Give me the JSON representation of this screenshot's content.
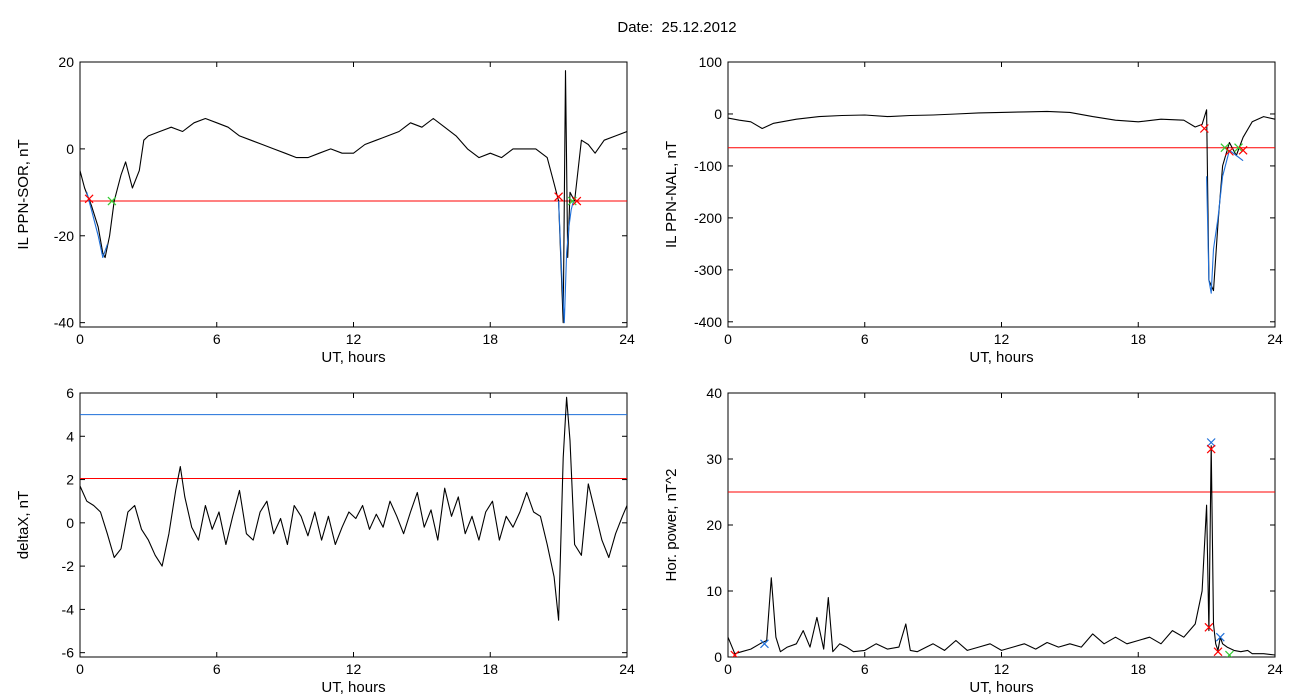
{
  "figure": {
    "title": "Date:  25.12.2012"
  },
  "chart_data": [
    {
      "type": "line",
      "panel": "top-left",
      "xlabel": "UT, hours",
      "ylabel": "IL PPN-SOR, nT",
      "xlim": [
        0,
        24
      ],
      "ylim": [
        -41,
        20
      ],
      "xticks": [
        0,
        6,
        12,
        18,
        24
      ],
      "yticks": [
        -40,
        -20,
        0,
        20
      ],
      "series": [
        {
          "role": "index",
          "color": "#000000",
          "x": [
            0,
            0.2,
            0.5,
            0.8,
            1.0,
            1.1,
            1.3,
            1.5,
            1.8,
            2.0,
            2.3,
            2.6,
            2.8,
            3.0,
            3.5,
            4.0,
            4.5,
            5.0,
            5.5,
            6.0,
            6.5,
            7.0,
            7.5,
            8.0,
            8.5,
            9.0,
            9.5,
            10.0,
            10.5,
            11.0,
            11.5,
            12.0,
            12.5,
            13.0,
            13.5,
            14.0,
            14.5,
            15.0,
            15.5,
            16.0,
            16.5,
            17.0,
            17.5,
            18.0,
            18.5,
            19.0,
            19.5,
            20.0,
            20.5,
            20.8,
            21.0,
            21.2,
            21.3,
            21.4,
            21.5,
            21.7,
            22.0,
            22.3,
            22.6,
            23.0,
            23.5,
            24.0
          ],
          "y": [
            -5,
            -9,
            -13,
            -18,
            -24,
            -25,
            -20,
            -12,
            -6,
            -3,
            -9,
            -5,
            2,
            3,
            4,
            5,
            4,
            6,
            7,
            6,
            5,
            3,
            2,
            1,
            0,
            -1,
            -2,
            -2,
            -1,
            0,
            -1,
            -1,
            1,
            2,
            3,
            4,
            6,
            5,
            7,
            5,
            3,
            0,
            -2,
            -1,
            -2,
            0,
            0,
            0,
            -2,
            -8,
            -12,
            -40,
            18,
            -25,
            -10,
            -12,
            2,
            1,
            -1,
            2,
            3,
            4
          ]
        },
        {
          "role": "disturbed",
          "color": "#1e6fd9",
          "x": [
            0.3,
            0.5,
            0.8,
            1.0,
            1.2
          ],
          "y": [
            -10,
            -14,
            -20,
            -25,
            -22
          ]
        },
        {
          "role": "disturbed",
          "color": "#1e6fd9",
          "x": [
            21.0,
            21.15,
            21.25,
            21.35,
            21.45,
            21.55,
            21.65
          ],
          "y": [
            -12,
            -30,
            -40,
            -24,
            -18,
            -14,
            -12
          ]
        }
      ],
      "thresholds": [
        {
          "y": -12,
          "color": "#ff0000"
        }
      ],
      "markers": [
        {
          "x": 0.4,
          "y": -11.5,
          "color": "#ff0000"
        },
        {
          "x": 1.4,
          "y": -12,
          "color": "#33cc33"
        },
        {
          "x": 21.0,
          "y": -11,
          "color": "#ff0000"
        },
        {
          "x": 21.6,
          "y": -12,
          "color": "#33cc33"
        },
        {
          "x": 21.8,
          "y": -12,
          "color": "#ff0000"
        }
      ]
    },
    {
      "type": "line",
      "panel": "top-right",
      "xlabel": "UT, hours",
      "ylabel": "IL PPN-NAL, nT",
      "xlim": [
        0,
        24
      ],
      "ylim": [
        -410,
        100
      ],
      "xticks": [
        0,
        6,
        12,
        18,
        24
      ],
      "yticks": [
        -400,
        -300,
        -200,
        -100,
        0,
        100
      ],
      "series": [
        {
          "role": "index",
          "color": "#000000",
          "x": [
            0,
            0.5,
            1.0,
            1.5,
            2.0,
            3.0,
            4.0,
            5.0,
            6.0,
            7.0,
            8.0,
            9.0,
            10.0,
            11.0,
            12.0,
            13.0,
            14.0,
            15.0,
            16.0,
            17.0,
            18.0,
            19.0,
            20.0,
            20.5,
            20.8,
            21.0,
            21.1,
            21.3,
            21.5,
            21.7,
            22.0,
            22.3,
            22.6,
            23.0,
            23.5,
            24.0
          ],
          "y": [
            -8,
            -12,
            -15,
            -28,
            -18,
            -10,
            -5,
            -3,
            -2,
            -5,
            -3,
            -2,
            0,
            2,
            3,
            4,
            5,
            3,
            -5,
            -12,
            -15,
            -10,
            -12,
            -25,
            -20,
            8,
            -320,
            -340,
            -210,
            -100,
            -55,
            -80,
            -45,
            -15,
            -5,
            -10
          ]
        },
        {
          "role": "disturbed",
          "color": "#1e6fd9",
          "x": [
            21.0,
            21.1,
            21.2,
            21.3,
            21.5,
            21.7,
            22.0,
            22.3,
            22.6
          ],
          "y": [
            -120,
            -320,
            -345,
            -260,
            -200,
            -120,
            -70,
            -80,
            -90
          ]
        }
      ],
      "thresholds": [
        {
          "y": -65,
          "color": "#ff0000"
        }
      ],
      "markers": [
        {
          "x": 20.9,
          "y": -28,
          "color": "#ff0000"
        },
        {
          "x": 21.8,
          "y": -65,
          "color": "#33cc33"
        },
        {
          "x": 22.0,
          "y": -72,
          "color": "#ff0000"
        },
        {
          "x": 22.4,
          "y": -65,
          "color": "#33cc33"
        },
        {
          "x": 22.6,
          "y": -70,
          "color": "#ff0000"
        }
      ]
    },
    {
      "type": "line",
      "panel": "bottom-left",
      "xlabel": "UT, hours",
      "ylabel": "deltaX, nT",
      "xlim": [
        0,
        24
      ],
      "ylim": [
        -6.2,
        6
      ],
      "xticks": [
        0,
        6,
        12,
        18,
        24
      ],
      "yticks": [
        -6,
        -4,
        -2,
        0,
        2,
        4,
        6
      ],
      "series": [
        {
          "role": "index",
          "color": "#000000",
          "x": [
            0,
            0.3,
            0.6,
            0.9,
            1.2,
            1.5,
            1.8,
            2.1,
            2.4,
            2.7,
            3.0,
            3.3,
            3.6,
            3.9,
            4.2,
            4.4,
            4.6,
            4.9,
            5.2,
            5.5,
            5.8,
            6.1,
            6.4,
            6.7,
            7.0,
            7.3,
            7.6,
            7.9,
            8.2,
            8.5,
            8.8,
            9.1,
            9.4,
            9.7,
            10.0,
            10.3,
            10.6,
            10.9,
            11.2,
            11.5,
            11.8,
            12.1,
            12.4,
            12.7,
            13.0,
            13.3,
            13.6,
            13.9,
            14.2,
            14.5,
            14.8,
            15.1,
            15.4,
            15.7,
            16.0,
            16.3,
            16.6,
            16.9,
            17.2,
            17.5,
            17.8,
            18.1,
            18.4,
            18.7,
            19.0,
            19.3,
            19.6,
            19.9,
            20.2,
            20.5,
            20.8,
            21.0,
            21.2,
            21.35,
            21.5,
            21.7,
            22.0,
            22.3,
            22.6,
            22.9,
            23.2,
            23.5,
            23.8,
            24.0
          ],
          "y": [
            1.7,
            1.0,
            0.8,
            0.5,
            -0.5,
            -1.6,
            -1.2,
            0.5,
            0.8,
            -0.3,
            -0.8,
            -1.5,
            -2.0,
            -0.5,
            1.5,
            2.6,
            1.2,
            -0.2,
            -0.8,
            0.8,
            -0.3,
            0.5,
            -1.0,
            0.3,
            1.5,
            -0.5,
            -0.8,
            0.5,
            1.0,
            -0.5,
            0.2,
            -1.0,
            0.8,
            0.3,
            -0.6,
            0.5,
            -0.8,
            0.3,
            -1.0,
            -0.2,
            0.5,
            0.2,
            0.8,
            -0.3,
            0.4,
            -0.2,
            1.0,
            0.3,
            -0.5,
            0.5,
            1.4,
            -0.2,
            0.6,
            -0.8,
            1.6,
            0.3,
            1.2,
            -0.5,
            0.3,
            -0.8,
            0.5,
            1.0,
            -0.8,
            0.3,
            -0.2,
            0.5,
            1.4,
            0.5,
            0.3,
            -1.0,
            -2.5,
            -4.5,
            3.0,
            5.8,
            3.8,
            -1.0,
            -1.5,
            1.8,
            0.5,
            -0.8,
            -1.6,
            -0.5,
            0.3,
            0.8
          ]
        }
      ],
      "thresholds": [
        {
          "y": 5.0,
          "color": "#1e6fd9"
        },
        {
          "y": 2.05,
          "color": "#ff0000"
        }
      ],
      "markers": []
    },
    {
      "type": "line",
      "panel": "bottom-right",
      "xlabel": "UT, hours",
      "ylabel": "Hor. power, nT^2",
      "xlim": [
        0,
        24
      ],
      "ylim": [
        0,
        40
      ],
      "xticks": [
        0,
        6,
        12,
        18,
        24
      ],
      "yticks": [
        0,
        10,
        20,
        30,
        40
      ],
      "series": [
        {
          "role": "index",
          "color": "#000000",
          "x": [
            0,
            0.3,
            0.6,
            1.0,
            1.4,
            1.7,
            1.9,
            2.1,
            2.3,
            2.6,
            3.0,
            3.3,
            3.6,
            3.9,
            4.2,
            4.4,
            4.6,
            4.9,
            5.2,
            5.5,
            6.0,
            6.5,
            7.0,
            7.5,
            7.8,
            8.0,
            8.3,
            8.7,
            9.0,
            9.5,
            10.0,
            10.5,
            11.0,
            11.5,
            12.0,
            12.5,
            13.0,
            13.5,
            14.0,
            14.5,
            15.0,
            15.5,
            16.0,
            16.5,
            17.0,
            17.5,
            18.0,
            18.5,
            19.0,
            19.5,
            20.0,
            20.5,
            20.8,
            21.0,
            21.1,
            21.2,
            21.3,
            21.4,
            21.5,
            21.6,
            21.7,
            21.9,
            22.2,
            22.5,
            22.8,
            23.0,
            23.5,
            24.0
          ],
          "y": [
            3,
            0.5,
            0.8,
            1.2,
            2.0,
            2.5,
            12,
            3,
            0.8,
            1.5,
            2.0,
            4.0,
            1.5,
            6.0,
            1.2,
            9.0,
            0.8,
            2.0,
            1.5,
            0.8,
            1.0,
            2.0,
            1.2,
            1.5,
            5.0,
            1.0,
            0.8,
            1.5,
            2.0,
            1.0,
            2.5,
            1.0,
            1.5,
            2.0,
            1.0,
            1.5,
            2.0,
            1.2,
            2.2,
            1.5,
            2.0,
            1.5,
            3.5,
            2.0,
            3.0,
            2.0,
            2.5,
            3.0,
            2.0,
            4.0,
            3.0,
            5.0,
            10,
            23,
            4,
            32,
            5,
            2,
            1,
            3,
            2,
            1.5,
            1.0,
            0.8,
            1.0,
            0.5,
            0.5,
            0.3
          ]
        }
      ],
      "thresholds": [
        {
          "y": 25,
          "color": "#ff0000"
        }
      ],
      "markers": [
        {
          "x": 0.3,
          "y": 0.3,
          "color": "#ff0000"
        },
        {
          "x": 1.6,
          "y": 2.0,
          "color": "#1e6fd9"
        },
        {
          "x": 21.1,
          "y": 4.5,
          "color": "#ff0000"
        },
        {
          "x": 21.2,
          "y": 32.5,
          "color": "#1e6fd9"
        },
        {
          "x": 21.2,
          "y": 31.5,
          "color": "#ff0000"
        },
        {
          "x": 21.6,
          "y": 3.0,
          "color": "#1e6fd9"
        },
        {
          "x": 21.5,
          "y": 0.8,
          "color": "#ff0000"
        },
        {
          "x": 22.0,
          "y": 0.3,
          "color": "#33cc33"
        }
      ]
    }
  ]
}
